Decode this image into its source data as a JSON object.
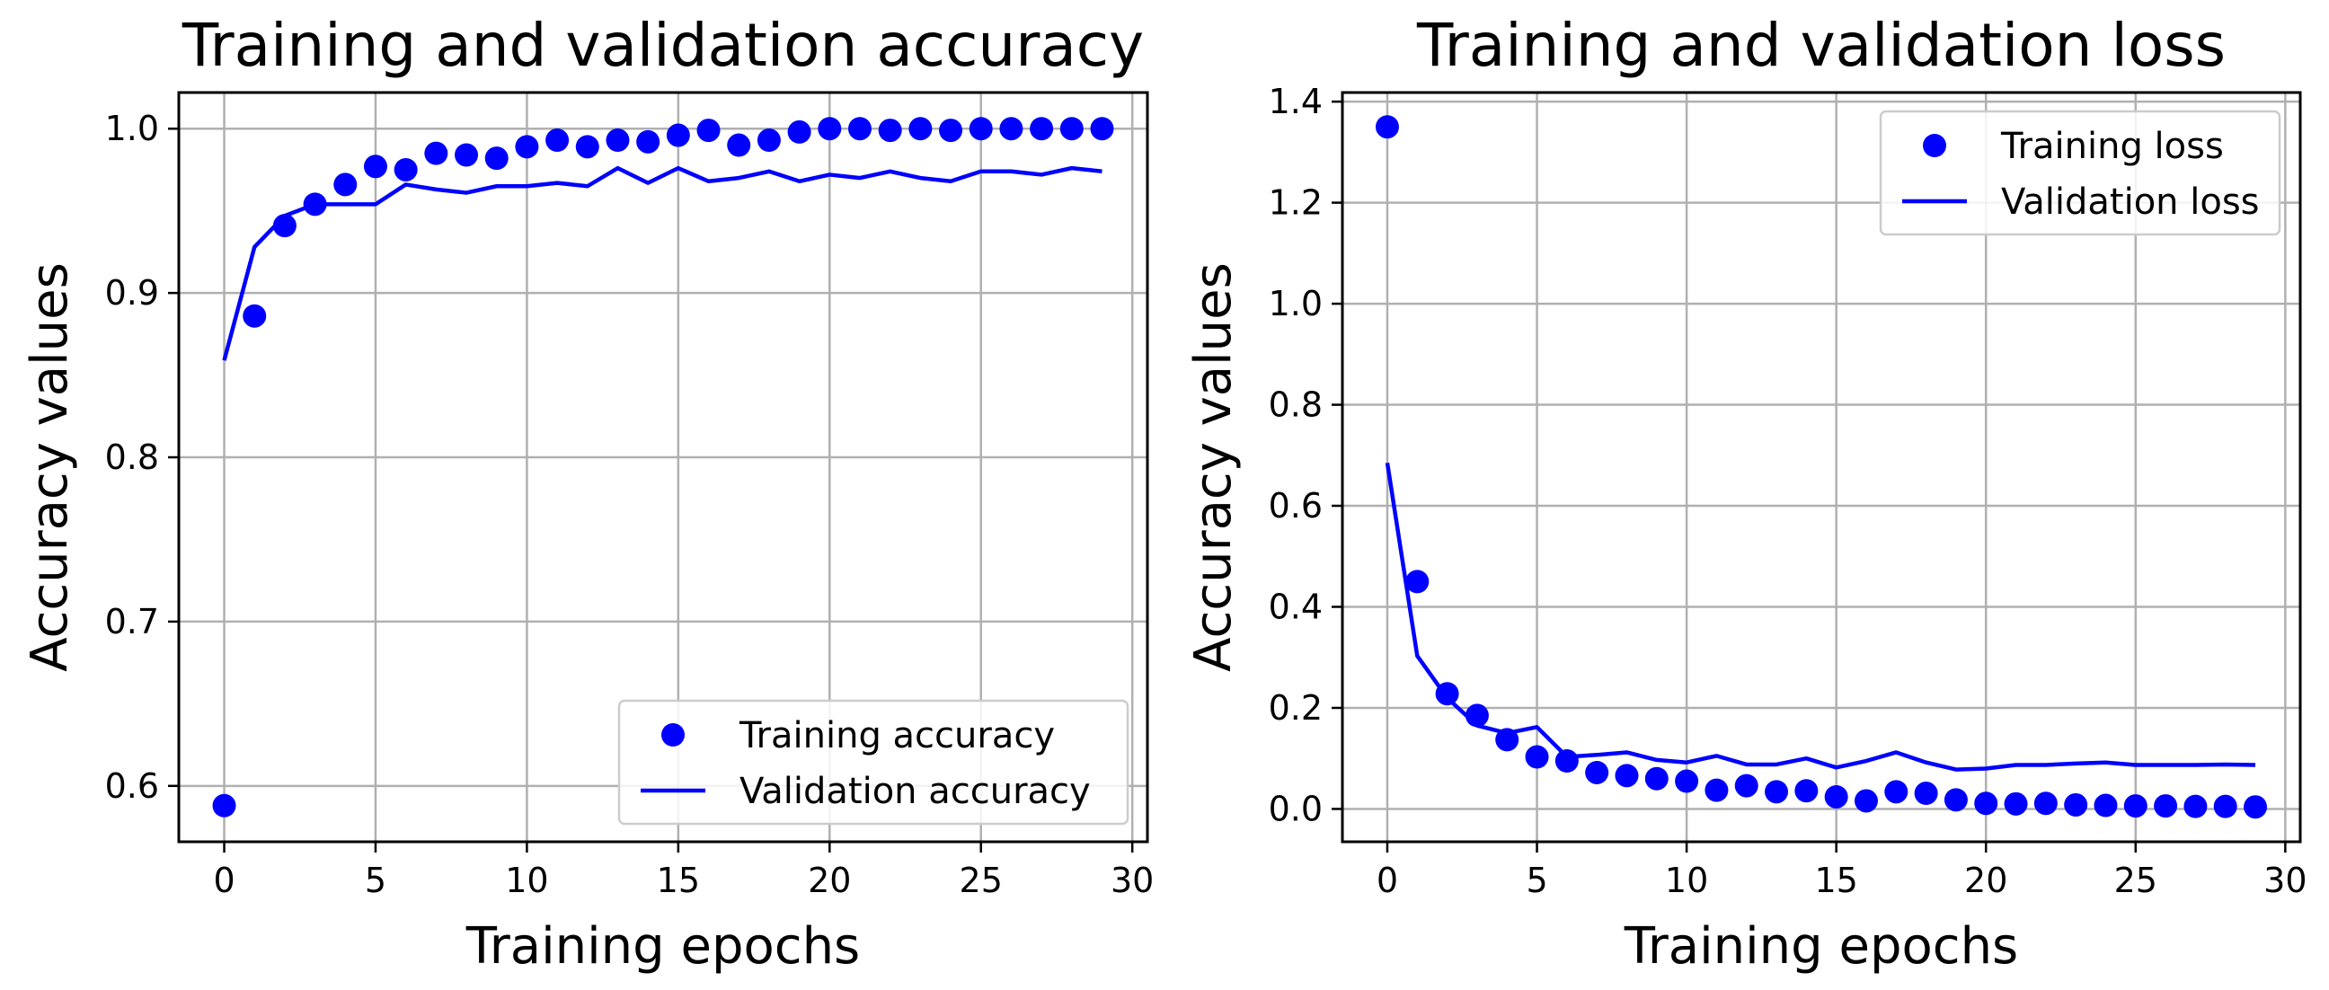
{
  "chart_data": [
    {
      "type": "line",
      "title": "Training and validation accuracy",
      "xlabel": "Training epochs",
      "ylabel": "Accuracy values",
      "xlim": [
        -1.5,
        30.5
      ],
      "ylim": [
        0.566,
        1.022
      ],
      "xticks": [
        0,
        5,
        10,
        15,
        20,
        25,
        30
      ],
      "xtick_labels": [
        "0",
        "5",
        "10",
        "15",
        "20",
        "25",
        "30"
      ],
      "yticks": [
        0.6,
        0.7,
        0.8,
        0.9,
        1.0
      ],
      "ytick_labels": [
        "0.6",
        "0.7",
        "0.8",
        "0.9",
        "1.0"
      ],
      "grid": true,
      "legend_position": "bottom-right",
      "color": "#0000ff",
      "x": [
        0,
        1,
        2,
        3,
        4,
        5,
        6,
        7,
        8,
        9,
        10,
        11,
        12,
        13,
        14,
        15,
        16,
        17,
        18,
        19,
        20,
        21,
        22,
        23,
        24,
        25,
        26,
        27,
        28,
        29
      ],
      "series": [
        {
          "name": "Training accuracy",
          "style": "dots",
          "values": [
            0.588,
            0.886,
            0.941,
            0.954,
            0.966,
            0.977,
            0.975,
            0.985,
            0.984,
            0.982,
            0.989,
            0.993,
            0.989,
            0.993,
            0.992,
            0.996,
            0.999,
            0.99,
            0.993,
            0.998,
            1.0,
            1.0,
            0.999,
            1.0,
            0.999,
            1.0,
            1.0,
            1.0,
            1.0,
            1.0
          ]
        },
        {
          "name": "Validation accuracy",
          "style": "line",
          "values": [
            0.859,
            0.928,
            0.947,
            0.954,
            0.954,
            0.954,
            0.966,
            0.963,
            0.961,
            0.965,
            0.965,
            0.967,
            0.965,
            0.976,
            0.967,
            0.976,
            0.968,
            0.97,
            0.974,
            0.968,
            0.972,
            0.97,
            0.974,
            0.97,
            0.968,
            0.974,
            0.974,
            0.972,
            0.976,
            0.974
          ]
        }
      ]
    },
    {
      "type": "line",
      "title": "Training and validation loss",
      "xlabel": "Training epochs",
      "ylabel": "Accuracy values",
      "xlim": [
        -1.5,
        30.5
      ],
      "ylim": [
        -0.065,
        1.418
      ],
      "xticks": [
        0,
        5,
        10,
        15,
        20,
        25,
        30
      ],
      "xtick_labels": [
        "0",
        "5",
        "10",
        "15",
        "20",
        "25",
        "30"
      ],
      "yticks": [
        0.0,
        0.2,
        0.4,
        0.6,
        0.8,
        1.0,
        1.2,
        1.4
      ],
      "ytick_labels": [
        "0.0",
        "0.2",
        "0.4",
        "0.6",
        "0.8",
        "1.0",
        "1.2",
        "1.4"
      ],
      "grid": true,
      "legend_position": "top-right",
      "color": "#0000ff",
      "x": [
        0,
        1,
        2,
        3,
        4,
        5,
        6,
        7,
        8,
        9,
        10,
        11,
        12,
        13,
        14,
        15,
        16,
        17,
        18,
        19,
        20,
        21,
        22,
        23,
        24,
        25,
        26,
        27,
        28,
        29
      ],
      "series": [
        {
          "name": "Training loss",
          "style": "dots",
          "values": [
            1.35,
            0.45,
            0.228,
            0.185,
            0.137,
            0.103,
            0.095,
            0.072,
            0.066,
            0.06,
            0.055,
            0.037,
            0.046,
            0.034,
            0.036,
            0.024,
            0.016,
            0.034,
            0.031,
            0.018,
            0.011,
            0.01,
            0.011,
            0.008,
            0.007,
            0.006,
            0.006,
            0.005,
            0.005,
            0.004
          ]
        },
        {
          "name": "Validation loss",
          "style": "line",
          "values": [
            0.685,
            0.303,
            0.22,
            0.165,
            0.15,
            0.162,
            0.103,
            0.107,
            0.112,
            0.097,
            0.092,
            0.105,
            0.088,
            0.088,
            0.1,
            0.082,
            0.095,
            0.112,
            0.092,
            0.078,
            0.08,
            0.087,
            0.087,
            0.09,
            0.092,
            0.087,
            0.087,
            0.087,
            0.088,
            0.087
          ]
        }
      ]
    }
  ]
}
